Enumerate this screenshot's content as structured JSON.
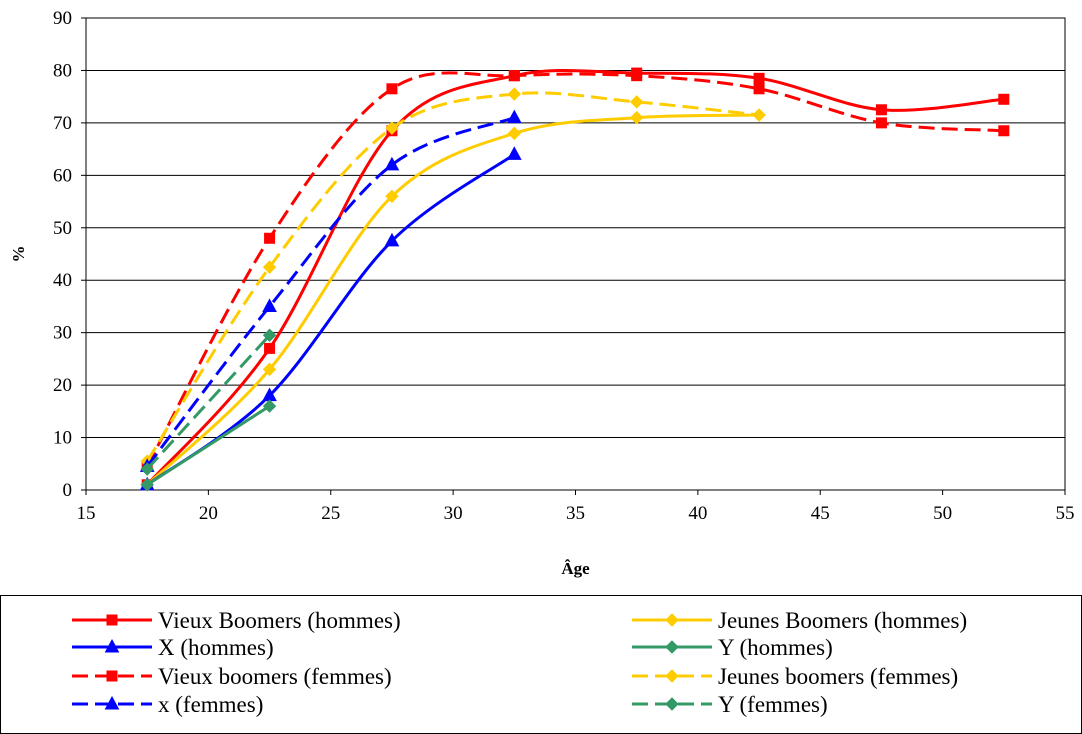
{
  "chart_data": {
    "type": "line",
    "title": "",
    "xlabel": "Âge",
    "ylabel": "%",
    "xlim": [
      15,
      55
    ],
    "ylim": [
      0,
      90
    ],
    "xticks": [
      "15",
      "20",
      "25",
      "30",
      "35",
      "40",
      "45",
      "50",
      "55"
    ],
    "yticks": [
      "0",
      "10",
      "20",
      "30",
      "40",
      "50",
      "60",
      "70",
      "80",
      "90"
    ],
    "grid": "horizontal",
    "legend_position": "bottom",
    "series": [
      {
        "name": "Vieux Boomers (hommes)",
        "color": "#ff0000",
        "dash": "solid",
        "marker": "square",
        "points": [
          [
            17.5,
            1
          ],
          [
            22.5,
            27
          ],
          [
            27.5,
            68.5
          ],
          [
            32.5,
            79
          ],
          [
            37.5,
            79.5
          ],
          [
            42.5,
            78.5
          ],
          [
            47.5,
            72.5
          ],
          [
            52.5,
            74.5
          ]
        ]
      },
      {
        "name": "Jeunes Boomers (hommes)",
        "color": "#ffcc00",
        "dash": "solid",
        "marker": "diamond",
        "points": [
          [
            17.5,
            1
          ],
          [
            22.5,
            23
          ],
          [
            27.5,
            56
          ],
          [
            32.5,
            68
          ],
          [
            37.5,
            71
          ],
          [
            42.5,
            71.5
          ]
        ]
      },
      {
        "name": "X (hommes)",
        "color": "#0000ff",
        "dash": "solid",
        "marker": "triangle",
        "points": [
          [
            17.5,
            1
          ],
          [
            22.5,
            18
          ],
          [
            27.5,
            47.5
          ],
          [
            32.5,
            64
          ]
        ]
      },
      {
        "name": "Y (hommes)",
        "color": "#339966",
        "dash": "solid",
        "marker": "diamond",
        "points": [
          [
            17.5,
            1
          ],
          [
            22.5,
            16
          ]
        ]
      },
      {
        "name": "Vieux boomers (femmes)",
        "color": "#ff0000",
        "dash": "dashed",
        "marker": "square",
        "points": [
          [
            17.5,
            4.5
          ],
          [
            22.5,
            48
          ],
          [
            27.5,
            76.5
          ],
          [
            32.5,
            79
          ],
          [
            37.5,
            79
          ],
          [
            42.5,
            76.5
          ],
          [
            47.5,
            70
          ],
          [
            52.5,
            68.5
          ]
        ]
      },
      {
        "name": "Jeunes boomers (femmes)",
        "color": "#ffcc00",
        "dash": "dashed",
        "marker": "diamond",
        "points": [
          [
            17.5,
            5.5
          ],
          [
            22.5,
            42.5
          ],
          [
            27.5,
            69
          ],
          [
            32.5,
            75.5
          ],
          [
            37.5,
            74
          ],
          [
            42.5,
            71.5
          ]
        ]
      },
      {
        "name": "x (femmes)",
        "color": "#0000ff",
        "dash": "dashed",
        "marker": "triangle",
        "points": [
          [
            17.5,
            4.5
          ],
          [
            22.5,
            35
          ],
          [
            27.5,
            62
          ],
          [
            32.5,
            71
          ]
        ]
      },
      {
        "name": "Y (femmes)",
        "color": "#339966",
        "dash": "dashed",
        "marker": "diamond",
        "points": [
          [
            17.5,
            4
          ],
          [
            22.5,
            29.5
          ]
        ]
      }
    ]
  }
}
